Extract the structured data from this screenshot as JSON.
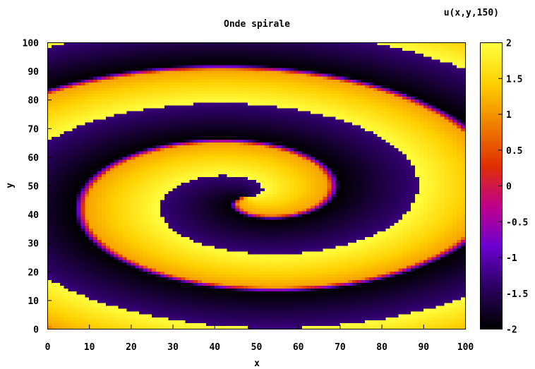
{
  "chart_data": {
    "type": "heatmap",
    "title": "Onde spirale",
    "colorbar_label": "u(x,y,150)",
    "xlabel": "x",
    "ylabel": "y",
    "xlim": [
      0,
      100
    ],
    "ylim": [
      0,
      100
    ],
    "zlim": [
      -2,
      2
    ],
    "x_ticks": [
      0,
      10,
      20,
      30,
      40,
      50,
      60,
      70,
      80,
      90,
      100
    ],
    "y_ticks": [
      0,
      10,
      20,
      30,
      40,
      50,
      60,
      70,
      80,
      90,
      100
    ],
    "colorbar_ticks": [
      "2",
      "1.5",
      "1",
      "0.5",
      "0",
      "-0.5",
      "-1",
      "-1.5",
      "-2"
    ],
    "colorbar_tick_values": [
      2,
      1.5,
      1,
      0.5,
      0,
      -0.5,
      -1,
      -1.5,
      -2
    ],
    "colormap": [
      "#000000",
      "#2a0060",
      "#6a00d0",
      "#c0008a",
      "#e03000",
      "#f08000",
      "#ffd000",
      "#ffff40"
    ],
    "field": {
      "description_type": "spiral",
      "center": [
        48,
        46
      ],
      "turns_visible": 2,
      "high": 2,
      "low": -2
    }
  }
}
